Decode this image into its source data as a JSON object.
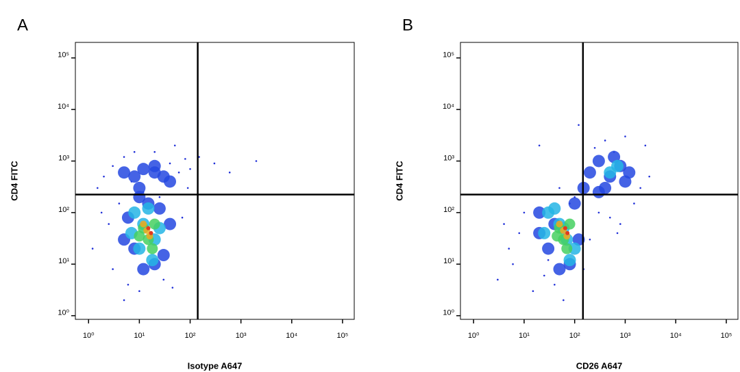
{
  "chart_data": [
    {
      "type": "scatter",
      "panel_label": "A",
      "xlabel": "Isotype A647",
      "ylabel": "CD4 FITC",
      "log": true,
      "xlim": [
        0.55,
        170000
      ],
      "ylim": [
        0.85,
        200000
      ],
      "xticks": [
        {
          "value": 1,
          "label": "10⁰"
        },
        {
          "value": 10,
          "label": "10¹"
        },
        {
          "value": 100,
          "label": "10²"
        },
        {
          "value": 1000,
          "label": "10³"
        },
        {
          "value": 10000,
          "label": "10⁴"
        },
        {
          "value": 100000,
          "label": "10⁵"
        }
      ],
      "yticks": [
        {
          "value": 1,
          "label": "10⁰"
        },
        {
          "value": 10,
          "label": "10¹"
        },
        {
          "value": 100,
          "label": "10²"
        },
        {
          "value": 1000,
          "label": "10³"
        },
        {
          "value": 10000,
          "label": "10⁴"
        },
        {
          "value": 100000,
          "label": "10⁵"
        }
      ],
      "quadrant": {
        "x": 141,
        "y": 224
      },
      "series": [
        {
          "color": "#1f2fd8",
          "marker_size": 1.3,
          "x": [
            2,
            3,
            1.5,
            5,
            8,
            40,
            60,
            80,
            4,
            2.5,
            1.2,
            3,
            6,
            100,
            70,
            30,
            10,
            5,
            20,
            50,
            150,
            300,
            600,
            2000,
            25,
            12,
            7,
            90,
            1.8,
            45
          ],
          "y": [
            500,
            800,
            300,
            1200,
            1500,
            900,
            600,
            1100,
            150,
            60,
            20,
            8,
            4,
            700,
            80,
            5,
            3,
            2,
            1500,
            2000,
            1200,
            900,
            600,
            1000,
            200,
            250,
            400,
            300,
            100,
            3.5
          ]
        },
        {
          "color": "#2548e0",
          "marker_size": 9,
          "x": [
            5,
            8,
            12,
            20,
            30,
            10,
            15,
            25,
            6,
            40,
            8,
            20,
            5,
            12,
            30,
            10,
            20,
            40
          ],
          "y": [
            600,
            500,
            700,
            600,
            500,
            200,
            150,
            120,
            80,
            60,
            20,
            10,
            30,
            8,
            15,
            300,
            800,
            400
          ]
        },
        {
          "color": "#25b5e5",
          "marker_size": 9,
          "x": [
            8,
            12,
            20,
            10,
            15,
            25,
            7,
            18
          ],
          "y": [
            100,
            60,
            30,
            20,
            120,
            50,
            40,
            12
          ]
        },
        {
          "color": "#45d060",
          "marker_size": 8,
          "x": [
            12,
            15,
            18,
            10,
            20
          ],
          "y": [
            50,
            30,
            20,
            35,
            60
          ]
        },
        {
          "color": "#f0a820",
          "marker_size": 5,
          "x": [
            14,
            16,
            12
          ],
          "y": [
            45,
            35,
            60
          ]
        },
        {
          "color": "#e03a20",
          "marker_size": 3,
          "x": [
            15,
            17
          ],
          "y": [
            50,
            40
          ]
        }
      ]
    },
    {
      "type": "scatter",
      "panel_label": "B",
      "xlabel": "CD26 A647",
      "ylabel": "CD4 FITC",
      "log": true,
      "xlim": [
        0.55,
        170000
      ],
      "ylim": [
        0.85,
        200000
      ],
      "xticks": [
        {
          "value": 1,
          "label": "10⁰"
        },
        {
          "value": 10,
          "label": "10¹"
        },
        {
          "value": 100,
          "label": "10²"
        },
        {
          "value": 1000,
          "label": "10³"
        },
        {
          "value": 10000,
          "label": "10⁴"
        },
        {
          "value": 100000,
          "label": "10⁵"
        }
      ],
      "yticks": [
        {
          "value": 1,
          "label": "10⁰"
        },
        {
          "value": 10,
          "label": "10¹"
        },
        {
          "value": 100,
          "label": "10²"
        },
        {
          "value": 1000,
          "label": "10³"
        },
        {
          "value": 10000,
          "label": "10⁴"
        },
        {
          "value": 100000,
          "label": "10⁵"
        }
      ],
      "quadrant": {
        "x": 146,
        "y": 224
      },
      "series": [
        {
          "color": "#1f2fd8",
          "marker_size": 1.3,
          "x": [
            8,
            5,
            3,
            15,
            25,
            40,
            150,
            200,
            300,
            500,
            800,
            1500,
            3000,
            2500,
            1000,
            400,
            600,
            250,
            120,
            20,
            10,
            6,
            4,
            60,
            100,
            700,
            2000,
            80,
            30,
            50
          ],
          "y": [
            40,
            20,
            5,
            3,
            6,
            4,
            8,
            30,
            100,
            80,
            60,
            150,
            500,
            2000,
            3000,
            2500,
            1500,
            1800,
            5000,
            2000,
            100,
            10,
            60,
            2,
            200,
            40,
            300,
            150,
            12,
            300
          ]
        },
        {
          "color": "#2548e0",
          "marker_size": 9,
          "x": [
            200,
            300,
            500,
            800,
            1200,
            400,
            600,
            1000,
            300,
            150,
            20,
            30,
            50,
            100,
            80,
            40,
            20,
            120
          ],
          "y": [
            600,
            1000,
            500,
            800,
            600,
            300,
            1200,
            400,
            250,
            300,
            100,
            20,
            8,
            150,
            10,
            60,
            40,
            30
          ]
        },
        {
          "color": "#25b5e5",
          "marker_size": 9,
          "x": [
            30,
            50,
            70,
            100,
            40,
            60,
            25,
            80,
            500,
            700
          ],
          "y": [
            100,
            60,
            30,
            20,
            120,
            50,
            40,
            12,
            600,
            800
          ]
        },
        {
          "color": "#45d060",
          "marker_size": 8,
          "x": [
            50,
            60,
            70,
            45,
            80
          ],
          "y": [
            50,
            30,
            20,
            35,
            60
          ]
        },
        {
          "color": "#f0a820",
          "marker_size": 5,
          "x": [
            60,
            70,
            50
          ],
          "y": [
            45,
            35,
            60
          ]
        },
        {
          "color": "#e03a20",
          "marker_size": 3,
          "x": [
            65,
            72
          ],
          "y": [
            50,
            40
          ]
        }
      ]
    }
  ]
}
